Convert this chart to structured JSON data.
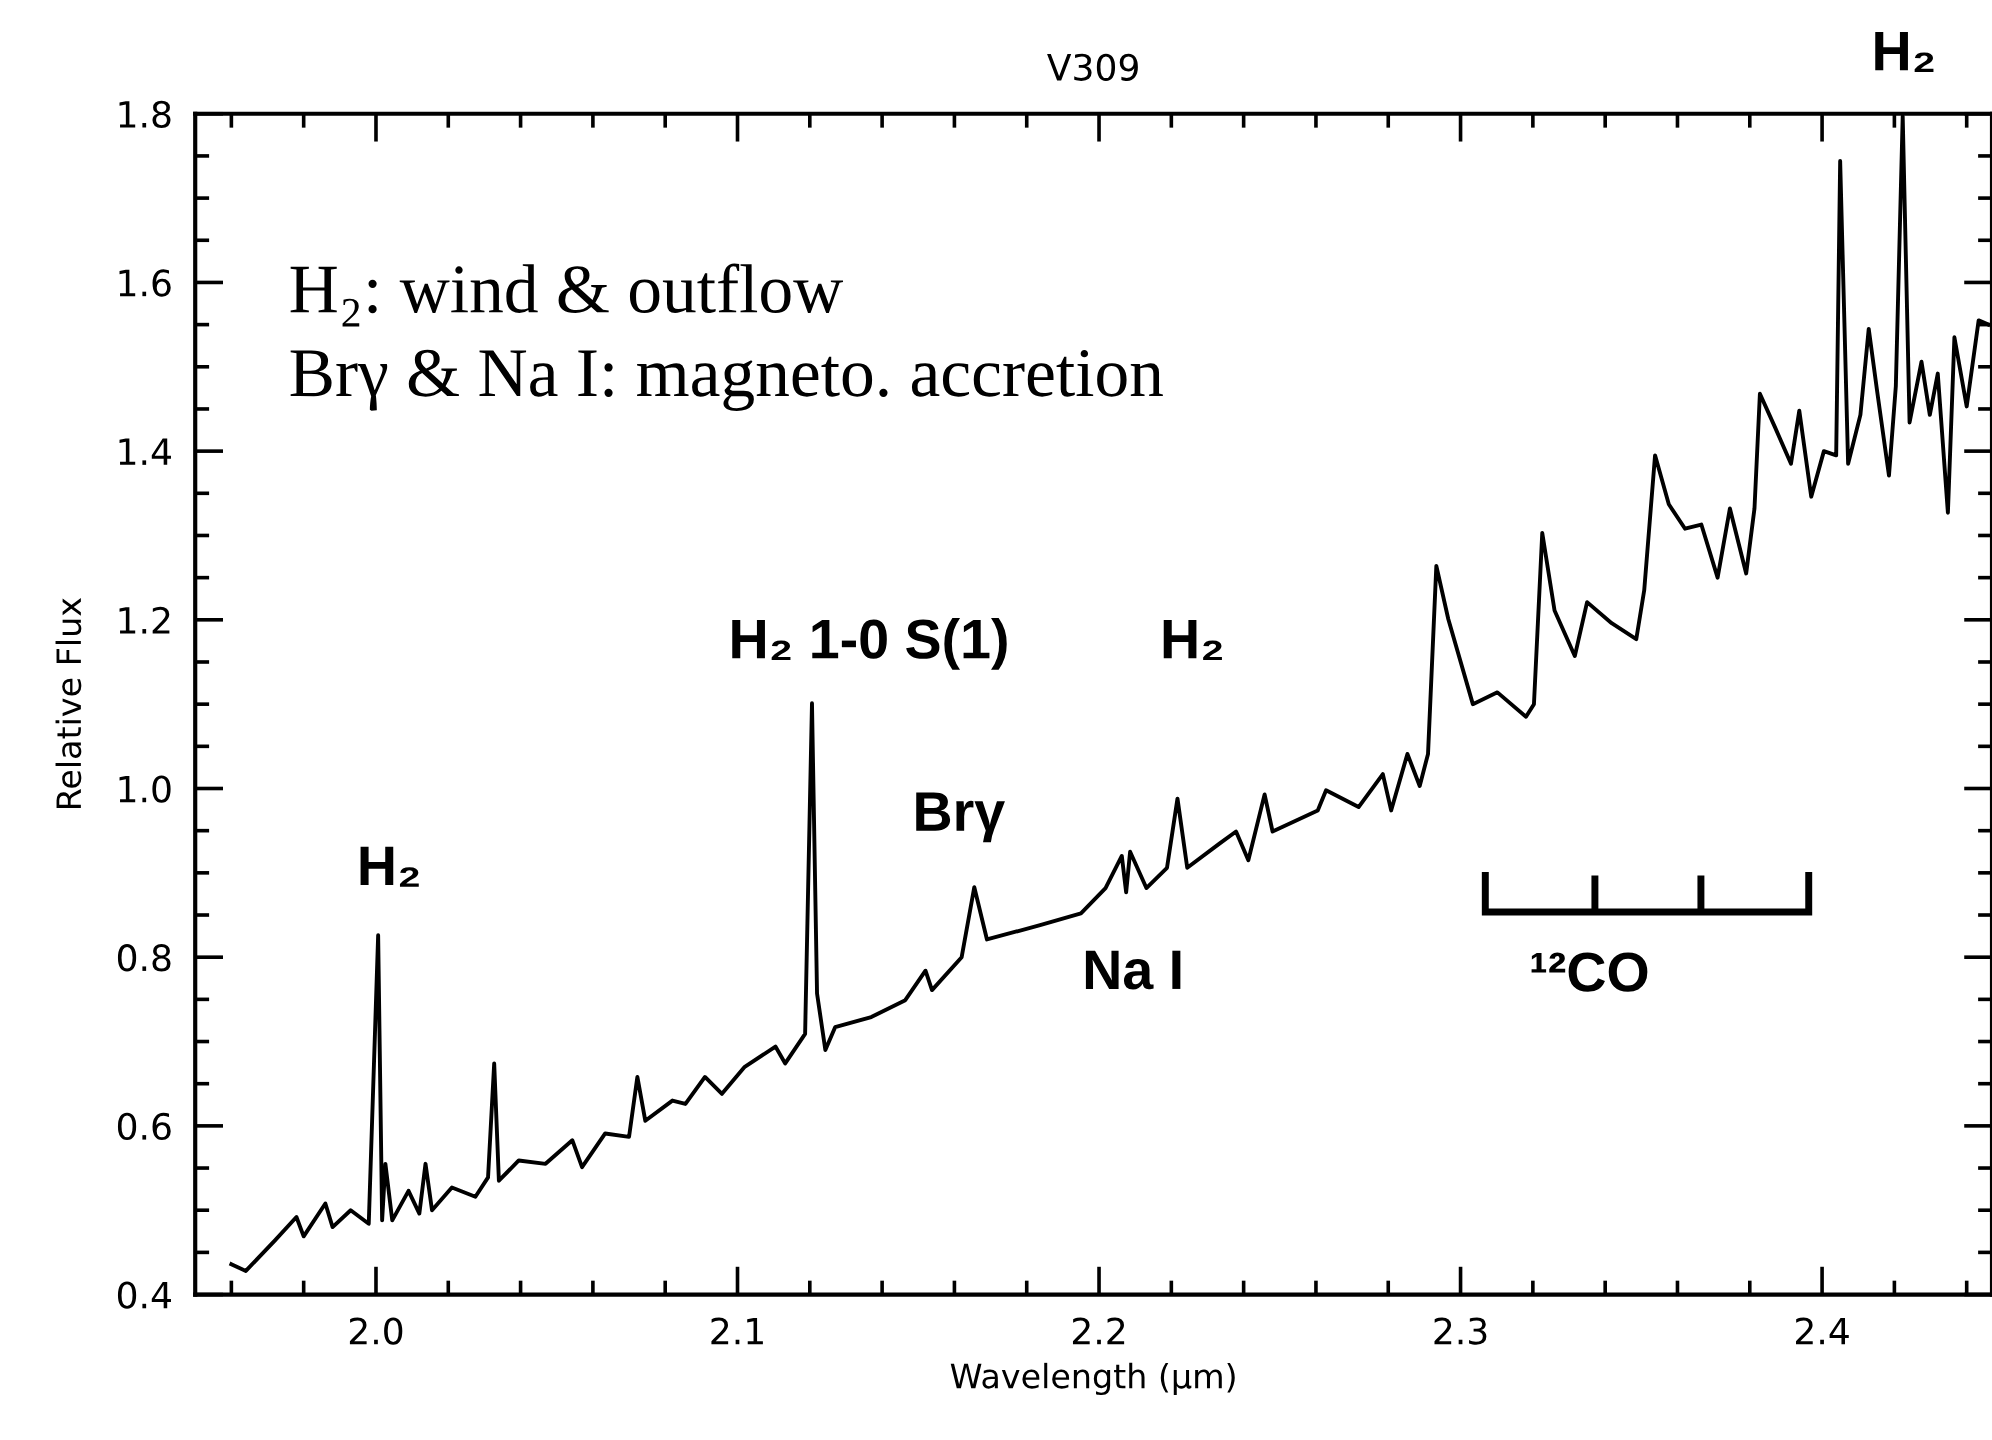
{
  "chart_data": {
    "type": "line",
    "title": "V309",
    "xlabel": "Wavelength (μm)",
    "ylabel": "Relative Flux",
    "xlim": [
      1.95,
      2.447
    ],
    "ylim": [
      0.4,
      1.8
    ],
    "xticks": [
      {
        "value": 2.0,
        "label": "2.0"
      },
      2.1,
      2.2,
      2.3,
      2.4
    ],
    "yticks": [
      0.4,
      0.6,
      0.8,
      {
        "value": 1.0,
        "label": "1.0"
      },
      1.2,
      1.4,
      1.6,
      1.8
    ],
    "grid": false,
    "legend": false,
    "marker": "none",
    "line_style": "solid",
    "annotations": [
      "H₂: wind & outflow",
      "Brγ & Na I: magneto. accretion",
      "H₂",
      "H₂ 1-0 S(1)",
      "Brγ",
      "H₂",
      "Na I",
      "¹²CO",
      "H₂"
    ],
    "series": [
      {
        "color": "#000000",
        "x": [
          1.96,
          1.964,
          1.972,
          1.978,
          1.98,
          1.986,
          1.988,
          1.993,
          1.998,
          2.0006,
          2.0017,
          2.0026,
          2.0045,
          2.009,
          2.012,
          2.0137,
          2.0155,
          2.021,
          2.0275,
          2.031,
          2.0327,
          2.034,
          2.0395,
          2.0469,
          2.0543,
          2.057,
          2.0634,
          2.07,
          2.0723,
          2.0745,
          2.082,
          2.0856,
          2.091,
          2.0957,
          2.102,
          2.1105,
          2.1132,
          2.1187,
          2.1206,
          2.122,
          2.1243,
          2.127,
          2.137,
          2.1464,
          2.152,
          2.1538,
          2.162,
          2.1655,
          2.169,
          2.1837,
          2.195,
          2.2018,
          2.2063,
          2.2075,
          2.2086,
          2.2131,
          2.2188,
          2.2217,
          2.2244,
          2.2334,
          2.2379,
          2.2413,
          2.2458,
          2.248,
          2.2605,
          2.2628,
          2.2718,
          2.2785,
          2.2808,
          2.2853,
          2.2887,
          2.291,
          2.2933,
          2.2966,
          2.3034,
          2.3102,
          2.3181,
          2.3203,
          2.3226,
          2.326,
          2.3316,
          2.335,
          2.3418,
          2.3486,
          2.3508,
          2.3538,
          2.3576,
          2.3621,
          2.3666,
          2.3711,
          2.3745,
          2.379,
          2.3813,
          2.3828,
          2.3869,
          2.3914,
          2.3937,
          2.397,
          2.4005,
          2.4039,
          2.405,
          2.4072,
          2.4106,
          2.4129,
          2.4152,
          2.4185,
          2.4204,
          2.4223,
          2.4242,
          2.4275,
          2.4298,
          2.432,
          2.4348,
          2.4366,
          2.44,
          2.4433,
          2.446
        ],
        "values": [
          0.436,
          0.428,
          0.464,
          0.492,
          0.469,
          0.508,
          0.48,
          0.5,
          0.484,
          0.826,
          0.488,
          0.555,
          0.488,
          0.523,
          0.496,
          0.555,
          0.5,
          0.527,
          0.516,
          0.539,
          0.674,
          0.535,
          0.559,
          0.555,
          0.583,
          0.551,
          0.591,
          0.587,
          0.658,
          0.606,
          0.63,
          0.626,
          0.658,
          0.638,
          0.67,
          0.694,
          0.674,
          0.709,
          1.101,
          0.757,
          0.69,
          0.717,
          0.729,
          0.749,
          0.784,
          0.761,
          0.8,
          0.883,
          0.821,
          0.838,
          0.852,
          0.882,
          0.92,
          0.877,
          0.925,
          0.882,
          0.906,
          0.988,
          0.906,
          0.935,
          0.949,
          0.915,
          0.993,
          0.949,
          0.974,
          0.998,
          0.978,
          1.017,
          0.974,
          1.041,
          1.003,
          1.041,
          1.264,
          1.201,
          1.1,
          1.114,
          1.085,
          1.1,
          1.303,
          1.211,
          1.157,
          1.221,
          1.196,
          1.177,
          1.235,
          1.395,
          1.337,
          1.308,
          1.313,
          1.25,
          1.332,
          1.255,
          1.332,
          1.468,
          1.429,
          1.385,
          1.448,
          1.346,
          1.4,
          1.395,
          1.744,
          1.385,
          1.443,
          1.545,
          1.472,
          1.371,
          1.477,
          1.797,
          1.434,
          1.506,
          1.443,
          1.492,
          1.327,
          1.535,
          1.453,
          1.555,
          1.55
        ]
      }
    ]
  }
}
